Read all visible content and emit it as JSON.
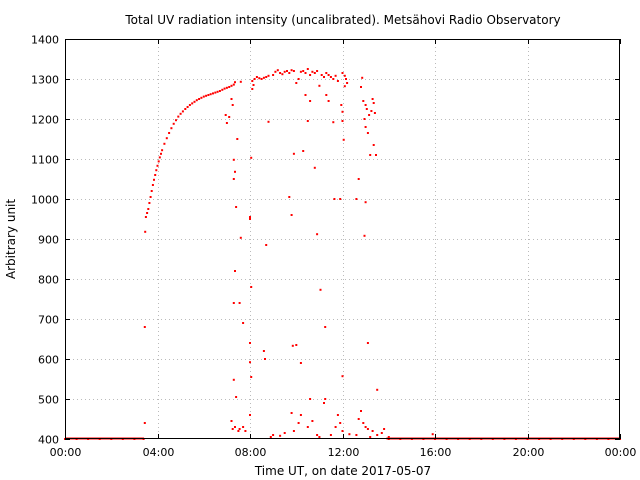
{
  "chart_data": {
    "type": "scatter",
    "title": "Total UV radiation intensity (uncalibrated). Metsähovi Radio Observatory",
    "xlabel": "Time UT, on date 2017-05-07",
    "ylabel": "Arbitrary unit",
    "xlim": [
      0,
      24
    ],
    "ylim": [
      400,
      1400
    ],
    "xticks": [
      0,
      4,
      8,
      12,
      16,
      20,
      24
    ],
    "xtick_labels": [
      "00:00",
      "04:00",
      "08:00",
      "12:00",
      "16:00",
      "20:00",
      "00:00"
    ],
    "yticks": [
      400,
      500,
      600,
      700,
      800,
      900,
      1000,
      1100,
      1200,
      1300,
      1400
    ],
    "ytick_labels": [
      "400",
      "500",
      "600",
      "700",
      "800",
      "900",
      "1000",
      "1100",
      "1200",
      "1300",
      "1400"
    ],
    "grid": true,
    "color": "#ff0000",
    "series": [
      {
        "points": [
          [
            0.0,
            400
          ],
          [
            0.5,
            400
          ],
          [
            1.0,
            400
          ],
          [
            1.5,
            400
          ],
          [
            2.0,
            400
          ],
          [
            2.5,
            400
          ],
          [
            3.0,
            400
          ],
          [
            3.4,
            400
          ],
          [
            3.45,
            440
          ],
          [
            3.45,
            680
          ],
          [
            3.47,
            918
          ],
          [
            3.5,
            955
          ],
          [
            3.55,
            965
          ],
          [
            3.6,
            975
          ],
          [
            3.65,
            990
          ],
          [
            3.7,
            1005
          ],
          [
            3.75,
            1020
          ],
          [
            3.8,
            1035
          ],
          [
            3.85,
            1048
          ],
          [
            3.9,
            1060
          ],
          [
            3.95,
            1072
          ],
          [
            4.0,
            1083
          ],
          [
            4.05,
            1094
          ],
          [
            4.1,
            1104
          ],
          [
            4.15,
            1113
          ],
          [
            4.2,
            1122
          ],
          [
            4.3,
            1138
          ],
          [
            4.4,
            1152
          ],
          [
            4.5,
            1165
          ],
          [
            4.6,
            1177
          ],
          [
            4.7,
            1188
          ],
          [
            4.8,
            1197
          ],
          [
            4.9,
            1206
          ],
          [
            5.0,
            1213
          ],
          [
            5.1,
            1219
          ],
          [
            5.2,
            1225
          ],
          [
            5.3,
            1230
          ],
          [
            5.4,
            1235
          ],
          [
            5.5,
            1239
          ],
          [
            5.6,
            1243
          ],
          [
            5.7,
            1247
          ],
          [
            5.8,
            1250
          ],
          [
            5.9,
            1253
          ],
          [
            6.0,
            1256
          ],
          [
            6.1,
            1258
          ],
          [
            6.2,
            1260
          ],
          [
            6.3,
            1262
          ],
          [
            6.4,
            1264
          ],
          [
            6.5,
            1266
          ],
          [
            6.6,
            1268
          ],
          [
            6.7,
            1270
          ],
          [
            6.8,
            1273
          ],
          [
            6.9,
            1276
          ],
          [
            7.0,
            1278
          ],
          [
            7.1,
            1280
          ],
          [
            7.2,
            1283
          ],
          [
            7.3,
            1286
          ],
          [
            7.35,
            1292
          ],
          [
            7.6,
            1293
          ],
          [
            6.95,
            1210
          ],
          [
            7.0,
            1190
          ],
          [
            7.1,
            1205
          ],
          [
            7.2,
            1250
          ],
          [
            7.25,
            1235
          ],
          [
            7.3,
            1050
          ],
          [
            7.3,
            1098
          ],
          [
            7.35,
            1068
          ],
          [
            7.4,
            980
          ],
          [
            7.45,
            1150
          ],
          [
            7.35,
            820
          ],
          [
            7.3,
            740
          ],
          [
            7.55,
            740
          ],
          [
            7.6,
            903
          ],
          [
            7.7,
            690
          ],
          [
            7.3,
            548
          ],
          [
            7.4,
            505
          ],
          [
            7.2,
            445
          ],
          [
            7.25,
            425
          ],
          [
            7.35,
            430
          ],
          [
            7.5,
            420
          ],
          [
            7.55,
            425
          ],
          [
            7.7,
            430
          ],
          [
            7.8,
            420
          ],
          [
            8.0,
            955
          ],
          [
            8.0,
            950
          ],
          [
            8.05,
            780
          ],
          [
            8.0,
            640
          ],
          [
            8.0,
            592
          ],
          [
            8.05,
            555
          ],
          [
            8.0,
            460
          ],
          [
            8.05,
            1103
          ],
          [
            8.1,
            1295
          ],
          [
            8.1,
            1275
          ],
          [
            8.15,
            1285
          ],
          [
            8.2,
            1300
          ],
          [
            8.3,
            1305
          ],
          [
            8.4,
            1302
          ],
          [
            8.5,
            1300
          ],
          [
            8.6,
            1303
          ],
          [
            8.7,
            1305
          ],
          [
            8.8,
            1308
          ],
          [
            8.6,
            620
          ],
          [
            8.65,
            600
          ],
          [
            8.7,
            885
          ],
          [
            8.8,
            1193
          ],
          [
            9.0,
            1310
          ],
          [
            9.1,
            1318
          ],
          [
            9.2,
            1322
          ],
          [
            9.3,
            1315
          ],
          [
            9.4,
            1312
          ],
          [
            9.5,
            1318
          ],
          [
            9.6,
            1320
          ],
          [
            9.7,
            1315
          ],
          [
            9.8,
            1322
          ],
          [
            9.9,
            1320
          ],
          [
            9.7,
            1005
          ],
          [
            9.8,
            960
          ],
          [
            9.85,
            633
          ],
          [
            9.9,
            1113
          ],
          [
            10.0,
            1290
          ],
          [
            10.1,
            1300
          ],
          [
            10.2,
            1318
          ],
          [
            10.3,
            1320
          ],
          [
            10.4,
            1315
          ],
          [
            10.5,
            1325
          ],
          [
            10.6,
            1310
          ],
          [
            10.7,
            1318
          ],
          [
            10.8,
            1315
          ],
          [
            10.9,
            1320
          ],
          [
            10.0,
            635
          ],
          [
            10.2,
            590
          ],
          [
            10.3,
            1120
          ],
          [
            10.4,
            1260
          ],
          [
            10.5,
            1195
          ],
          [
            10.6,
            1245
          ],
          [
            10.8,
            1078
          ],
          [
            10.9,
            912
          ],
          [
            11.0,
            1283
          ],
          [
            11.05,
            773
          ],
          [
            11.1,
            1310
          ],
          [
            11.2,
            1305
          ],
          [
            11.25,
            680
          ],
          [
            11.3,
            1315
          ],
          [
            11.4,
            1310
          ],
          [
            11.5,
            1305
          ],
          [
            11.6,
            1300
          ],
          [
            11.7,
            1308
          ],
          [
            11.8,
            1295
          ],
          [
            11.3,
            1260
          ],
          [
            11.4,
            1245
          ],
          [
            11.6,
            1192
          ],
          [
            11.65,
            1000
          ],
          [
            11.9,
            1000
          ],
          [
            11.95,
            1235
          ],
          [
            12.0,
            1218
          ],
          [
            12.0,
            1315
          ],
          [
            12.1,
            1308
          ],
          [
            12.15,
            1300
          ],
          [
            12.2,
            1290
          ],
          [
            12.0,
            1195
          ],
          [
            12.05,
            1148
          ],
          [
            12.1,
            1282
          ],
          [
            12.0,
            557
          ],
          [
            12.7,
            1050
          ],
          [
            12.8,
            1280
          ],
          [
            12.85,
            1303
          ],
          [
            12.9,
            1245
          ],
          [
            12.95,
            1200
          ],
          [
            13.0,
            1180
          ],
          [
            13.0,
            1235
          ],
          [
            13.05,
            1225
          ],
          [
            13.1,
            1165
          ],
          [
            13.15,
            1210
          ],
          [
            13.2,
            1110
          ],
          [
            13.25,
            1220
          ],
          [
            13.3,
            1250
          ],
          [
            13.35,
            1240
          ],
          [
            13.4,
            1215
          ],
          [
            13.45,
            1110
          ],
          [
            13.35,
            1135
          ],
          [
            13.0,
            992
          ],
          [
            12.95,
            908
          ],
          [
            12.6,
            1000
          ],
          [
            13.1,
            640
          ],
          [
            13.5,
            523
          ],
          [
            8.9,
            405
          ],
          [
            9.0,
            410
          ],
          [
            9.3,
            408
          ],
          [
            9.5,
            415
          ],
          [
            9.8,
            465
          ],
          [
            9.9,
            420
          ],
          [
            10.1,
            440
          ],
          [
            10.2,
            460
          ],
          [
            10.5,
            430
          ],
          [
            10.6,
            500
          ],
          [
            10.7,
            445
          ],
          [
            10.9,
            410
          ],
          [
            11.0,
            405
          ],
          [
            11.2,
            490
          ],
          [
            11.25,
            500
          ],
          [
            11.5,
            410
          ],
          [
            11.7,
            430
          ],
          [
            11.8,
            460
          ],
          [
            11.9,
            440
          ],
          [
            12.0,
            420
          ],
          [
            12.3,
            412
          ],
          [
            12.6,
            410
          ],
          [
            12.7,
            450
          ],
          [
            12.8,
            470
          ],
          [
            12.9,
            440
          ],
          [
            13.0,
            430
          ],
          [
            13.1,
            425
          ],
          [
            13.2,
            405
          ],
          [
            13.3,
            420
          ],
          [
            13.5,
            410
          ],
          [
            13.7,
            415
          ],
          [
            13.8,
            425
          ],
          [
            14.0,
            405
          ],
          [
            14.0,
            400
          ],
          [
            14.5,
            400
          ],
          [
            15.0,
            400
          ],
          [
            15.5,
            400
          ],
          [
            15.9,
            412
          ],
          [
            16.0,
            400
          ],
          [
            16.5,
            400
          ],
          [
            17.0,
            400
          ],
          [
            17.5,
            400
          ],
          [
            18.0,
            400
          ],
          [
            18.5,
            400
          ],
          [
            19.0,
            400
          ],
          [
            19.5,
            400
          ],
          [
            20.0,
            400
          ],
          [
            20.5,
            400
          ],
          [
            21.0,
            400
          ],
          [
            21.5,
            400
          ],
          [
            22.0,
            400
          ],
          [
            22.5,
            400
          ],
          [
            23.0,
            400
          ],
          [
            23.5,
            400
          ],
          [
            24.0,
            400
          ]
        ],
        "baseline_segments": [
          [
            0,
            3.42,
            400
          ],
          [
            13.9,
            24,
            400
          ]
        ]
      }
    ]
  }
}
